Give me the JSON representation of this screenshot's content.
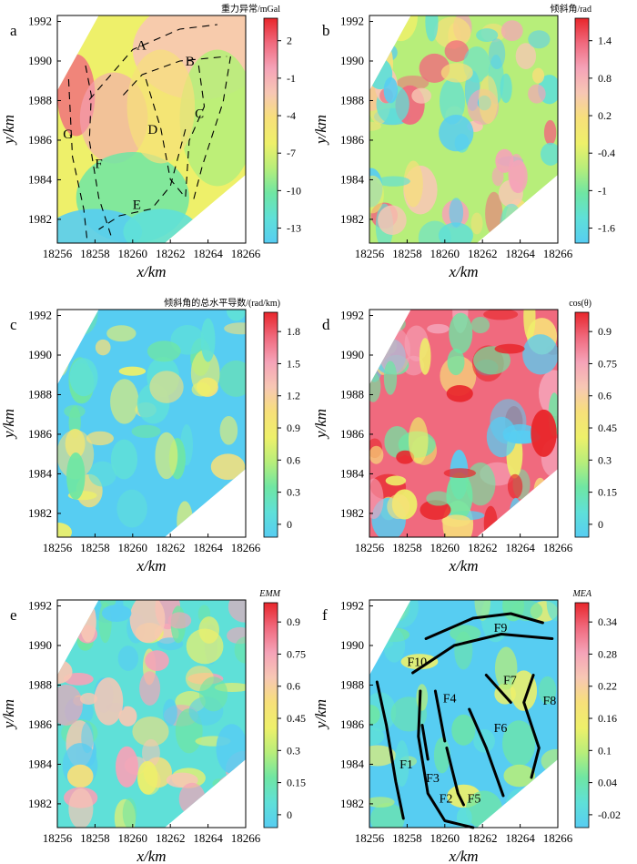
{
  "figure": {
    "panels": [
      {
        "letter": "a",
        "colorbar_title": "重力异常/mGal",
        "colorbar_ticks": [
          "2",
          "-1",
          "-4",
          "-7",
          "-10",
          "-13"
        ],
        "scheme": "rainbow",
        "zone_labels": [
          "A",
          "B",
          "C",
          "D",
          "E",
          "F",
          "G"
        ]
      },
      {
        "letter": "b",
        "colorbar_title": "倾斜角/rad",
        "colorbar_ticks": [
          "1.4",
          "0.8",
          "0.2",
          "-0.4",
          "-1",
          "-1.6"
        ],
        "scheme": "rainbow"
      },
      {
        "letter": "c",
        "colorbar_title": "倾斜角的总水平导数/(rad/km)",
        "colorbar_ticks": [
          "1.8",
          "1.5",
          "1.2",
          "0.9",
          "0.6",
          "0.3",
          "0"
        ],
        "scheme": "rainbow"
      },
      {
        "letter": "d",
        "colorbar_title": "cos(θ)",
        "colorbar_ticks": [
          "0.9",
          "0.75",
          "0.6",
          "0.45",
          "0.3",
          "0.15",
          "0"
        ],
        "scheme": "rainbow"
      },
      {
        "letter": "e",
        "colorbar_title": "EMM",
        "colorbar_ticks": [
          "0.9",
          "0.75",
          "0.6",
          "0.45",
          "0.3",
          "0.15",
          "0"
        ],
        "scheme": "rainbow"
      },
      {
        "letter": "f",
        "colorbar_title": "MEA",
        "colorbar_ticks": [
          "0.34",
          "0.28",
          "0.22",
          "0.16",
          "0.1",
          "0.04",
          "-0.02"
        ],
        "scheme": "rainbow",
        "fault_labels": [
          "F9",
          "F10",
          "F7",
          "F8",
          "F4",
          "F6",
          "F1",
          "F3",
          "F2",
          "F5"
        ]
      }
    ],
    "x_ticks": [
      "18256",
      "18258",
      "18260",
      "18262",
      "18264",
      "18266"
    ],
    "y_ticks": [
      "1992",
      "1990",
      "1988",
      "1986",
      "1984",
      "1982"
    ],
    "x_label": "x/km",
    "y_label": "y/km"
  },
  "chart_data": [
    {
      "type": "heatmap",
      "panel": "a",
      "title": "重力异常/mGal",
      "xlabel": "x/km",
      "ylabel": "y/km",
      "xlim": [
        18256,
        18266
      ],
      "ylim": [
        1980.5,
        1992
      ],
      "colorbar_range": [
        -14,
        4
      ],
      "zone_labels": [
        "A",
        "B",
        "C",
        "D",
        "E",
        "F",
        "G"
      ]
    },
    {
      "type": "heatmap",
      "panel": "b",
      "title": "倾斜角/rad",
      "xlabel": "x/km",
      "ylabel": "y/km",
      "xlim": [
        18256,
        18266
      ],
      "ylim": [
        1980.5,
        1992
      ],
      "colorbar_range": [
        -1.7,
        1.7
      ]
    },
    {
      "type": "heatmap",
      "panel": "c",
      "title": "倾斜角的总水平导数/(rad/km)",
      "xlabel": "x/km",
      "ylabel": "y/km",
      "xlim": [
        18256,
        18266
      ],
      "ylim": [
        1980.5,
        1992
      ],
      "colorbar_range": [
        0,
        1.9
      ]
    },
    {
      "type": "heatmap",
      "panel": "d",
      "title": "cos(θ)",
      "xlabel": "x/km",
      "ylabel": "y/km",
      "xlim": [
        18256,
        18266
      ],
      "ylim": [
        1980.5,
        1992
      ],
      "colorbar_range": [
        0,
        1
      ]
    },
    {
      "type": "heatmap",
      "panel": "e",
      "title": "EMM",
      "xlabel": "x/km",
      "ylabel": "y/km",
      "xlim": [
        18256,
        18266
      ],
      "ylim": [
        1980.5,
        1992
      ],
      "colorbar_range": [
        0,
        1
      ]
    },
    {
      "type": "heatmap",
      "panel": "f",
      "title": "MEA",
      "xlabel": "x/km",
      "ylabel": "y/km",
      "xlim": [
        18256,
        18266
      ],
      "ylim": [
        1980.5,
        1992
      ],
      "colorbar_range": [
        -0.02,
        0.36
      ],
      "faults": [
        "F1",
        "F2",
        "F3",
        "F4",
        "F5",
        "F6",
        "F7",
        "F8",
        "F9",
        "F10"
      ]
    }
  ]
}
